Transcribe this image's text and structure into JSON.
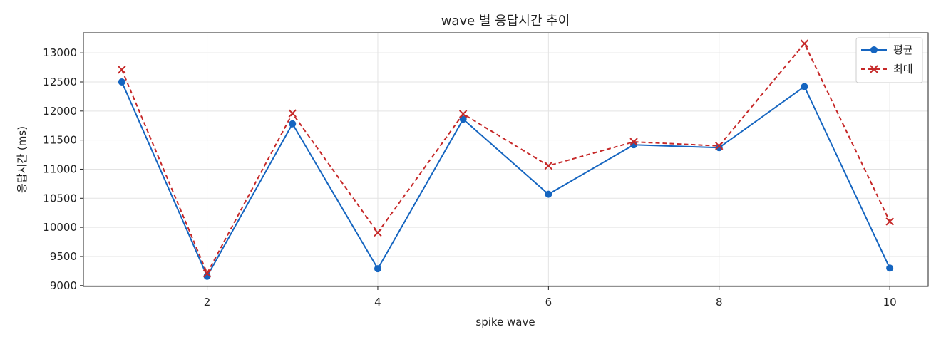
{
  "chart_data": {
    "type": "line",
    "title": "wave 별 응답시간 추이",
    "xlabel": "spike wave",
    "ylabel": "응답시간 (ms)",
    "x": [
      1,
      2,
      3,
      4,
      5,
      6,
      7,
      8,
      9,
      10
    ],
    "xlim": [
      0.55,
      10.45
    ],
    "ylim": [
      8985,
      13345
    ],
    "xticks": [
      2,
      4,
      6,
      8,
      10
    ],
    "yticks": [
      9000,
      9500,
      10000,
      10500,
      11000,
      11500,
      12000,
      12500,
      13000
    ],
    "grid": true,
    "legend_position": "top-right",
    "series": [
      {
        "name": "평균",
        "color": "#1565c0",
        "line_style": "solid",
        "marker": "circle",
        "values": [
          12500,
          9160,
          11780,
          9290,
          11860,
          10570,
          11420,
          11370,
          12420,
          9300
        ]
      },
      {
        "name": "최대",
        "color": "#c62828",
        "line_style": "dashed",
        "marker": "x",
        "values": [
          12710,
          9210,
          11960,
          9910,
          11950,
          11060,
          11470,
          11400,
          13160,
          10100
        ]
      }
    ]
  }
}
